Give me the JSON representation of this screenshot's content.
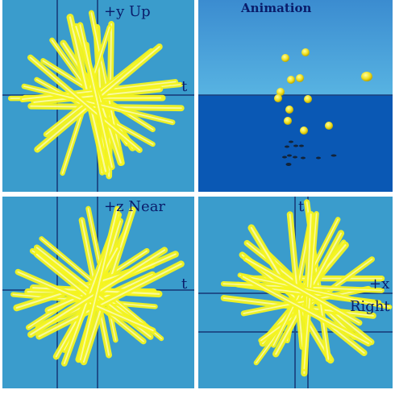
{
  "panels": {
    "top_left": {
      "view": "t vs +y",
      "axis_h_label": "t",
      "axis_v_label": "+y Up"
    },
    "top_right": {
      "view": "animation",
      "title": "Animation"
    },
    "bottom_left": {
      "view": "t vs +z",
      "axis_h_label": "t",
      "axis_v_label": "+z Near"
    },
    "bottom_right": {
      "view": "+x vs t",
      "axis_h_label": "+x",
      "axis_h_sublabel": "Right",
      "axis_v_label": "t"
    }
  },
  "colors": {
    "panel_bg": "#3a9ccc",
    "sky_top": "#3b8cd0",
    "sky_bottom": "#58b4e2",
    "water": "#0a58b4",
    "axis": "#1f4f8a",
    "label": "#0a1c6a",
    "ray": "#f5f520",
    "ray_highlight": "#fffff0",
    "ball": "#f0e020",
    "shadow": "#12243a"
  }
}
